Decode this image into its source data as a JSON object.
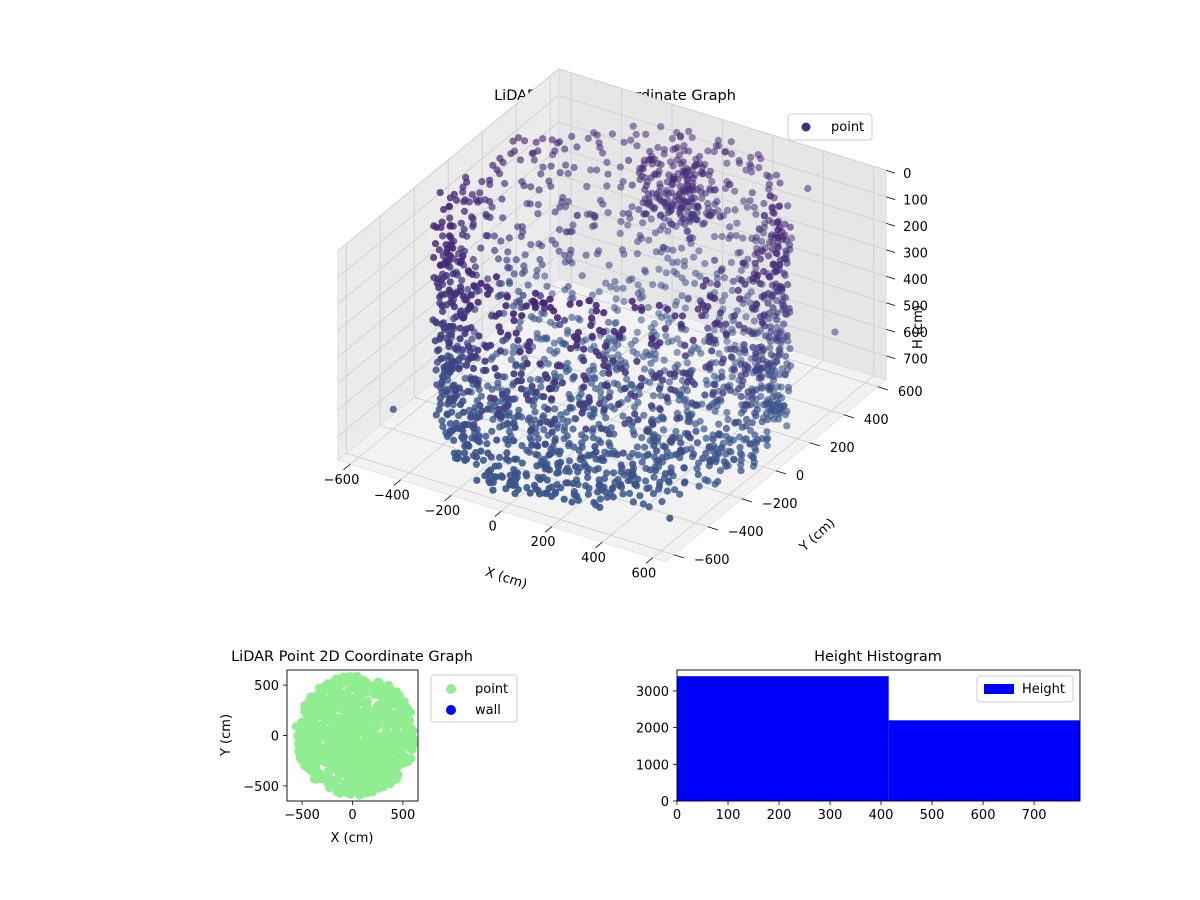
{
  "chart_data": [
    {
      "type": "scatter3d",
      "title": "LiDAR Point 3D Coordinate Graph",
      "xlabel": "X (cm)",
      "ylabel": "Y (cm)",
      "zlabel": "H (cm)",
      "x_ticks": [
        "−600",
        "−400",
        "−200",
        "0",
        "200",
        "400",
        "600"
      ],
      "y_ticks": [
        "−600",
        "−400",
        "−200",
        "0",
        "200",
        "400",
        "600"
      ],
      "z_ticks": [
        "0",
        "100",
        "200",
        "300",
        "400",
        "500",
        "600",
        "700"
      ],
      "xlim": [
        -650,
        650
      ],
      "ylim": [
        -650,
        650
      ],
      "zlim": [
        0,
        790
      ],
      "z_inverted": true,
      "legend": {
        "placement": "top-right",
        "entries": [
          {
            "label": "point",
            "color": "#472c7a"
          }
        ]
      },
      "grid": true,
      "colormap": "viridis",
      "points_note_values": {
        "structure": "cylindrical wall of radius ~580 cm with floor points, plus stray points",
        "wall_radius": 580,
        "wall_height_range": [
          0,
          790
        ],
        "floor_height": 0
      }
    },
    {
      "type": "scatter",
      "title": "LiDAR Point 2D Coordinate Graph",
      "xlabel": "X (cm)",
      "ylabel": "Y (cm)",
      "x_ticks": [
        "−500",
        "0",
        "500"
      ],
      "y_ticks": [
        "500",
        "0",
        "−500"
      ],
      "xlim": [
        -650,
        650
      ],
      "ylim": [
        -650,
        650
      ],
      "grid": false,
      "legend": {
        "placement": "outside-right",
        "entries": [
          {
            "label": "point",
            "color": "#90ee90"
          },
          {
            "label": "wall",
            "color": "#0000ff"
          }
        ]
      }
    },
    {
      "type": "bar",
      "title": "Height Histogram",
      "bins": [
        {
          "start": 0,
          "end": 415
        },
        {
          "start": 415,
          "end": 790
        }
      ],
      "values": [
        3400,
        2200
      ],
      "x_ticks": [
        "0",
        "100",
        "200",
        "300",
        "400",
        "500",
        "600",
        "700"
      ],
      "y_ticks": [
        "0",
        "1000",
        "2000",
        "3000"
      ],
      "xlim": [
        0,
        790
      ],
      "ylim": [
        0,
        3570
      ],
      "color": "#0000ff",
      "legend": {
        "placement": "top-right",
        "entries": [
          {
            "label": "Height",
            "color": "#0000ff"
          }
        ]
      }
    }
  ]
}
